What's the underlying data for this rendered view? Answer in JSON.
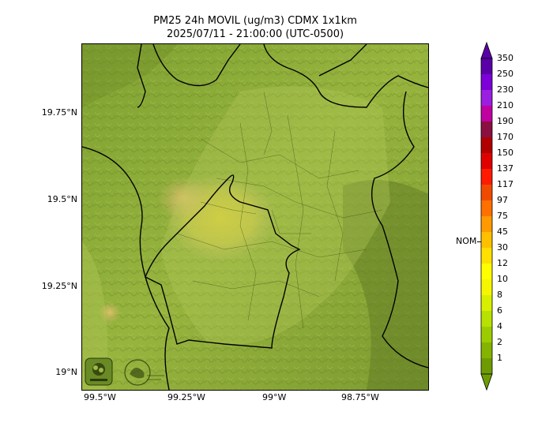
{
  "title": {
    "line1": "PM25 24h MOVIL (ug/m3) CDMX 1x1km",
    "line2": "2025/07/11 - 21:00:00 (UTC-0500)"
  },
  "axes": {
    "y_ticks": [
      "19.75°N",
      "19.5°N",
      "19.25°N",
      "19°N"
    ],
    "x_ticks": [
      "99.5°W",
      "99.25°W",
      "99°W",
      "98.75°W"
    ]
  },
  "colorbar": {
    "labels": [
      "350",
      "250",
      "230",
      "210",
      "190",
      "170",
      "150",
      "137",
      "117",
      "97",
      "75",
      "45",
      "30",
      "12",
      "10",
      "8",
      "6",
      "4",
      "2",
      "1"
    ],
    "colors": [
      "#5a00a8",
      "#7d00d8",
      "#9b1fe0",
      "#c000a0",
      "#8a1040",
      "#b00000",
      "#e00000",
      "#ff1a00",
      "#f04a00",
      "#ff7000",
      "#ff9a00",
      "#ffc000",
      "#ffe000",
      "#ffff00",
      "#f6f600",
      "#d8f000",
      "#b8e000",
      "#9ccc00",
      "#84b400",
      "#6e9c00"
    ],
    "nom_label": "NOM",
    "nom_value": "45"
  },
  "map": {
    "base_color": "#8fae3a",
    "hotspot_color": "#d9cc40",
    "logos": [
      "sedema-logo",
      "cdmx-gobierno-logo"
    ]
  }
}
